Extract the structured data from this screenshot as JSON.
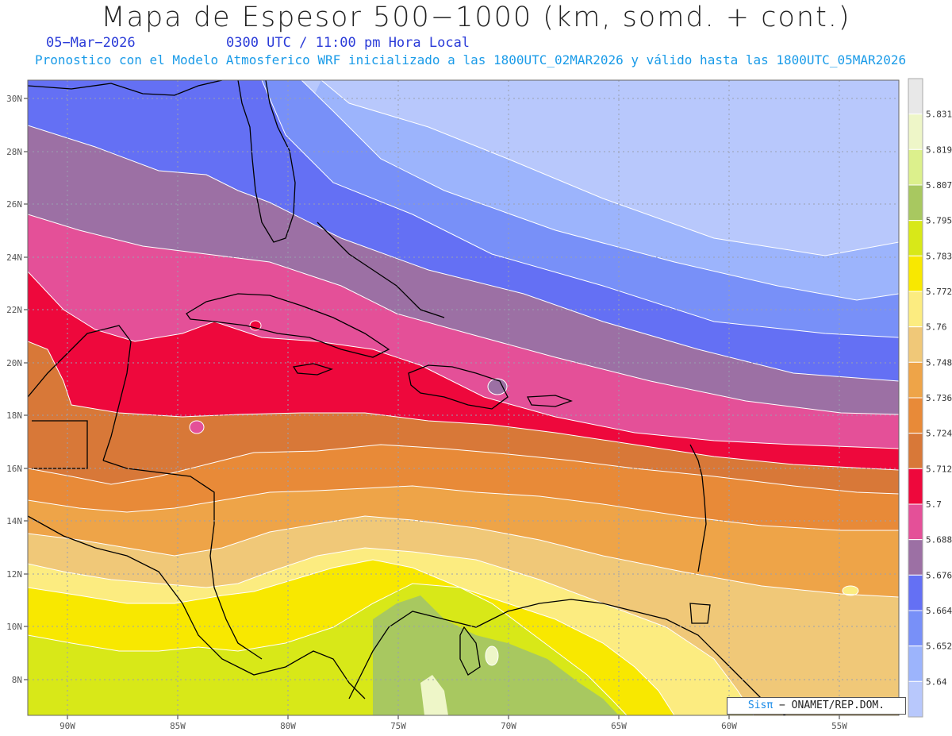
{
  "header": {
    "title": "Mapa de Espesor 500−1000 (km, somd. + cont.)",
    "date": "05−Mar−2026",
    "time": "0300 UTC / 11:00 pm Hora Local",
    "subtitle": "Pronostico con el Modelo Atmosferico WRF inicializado a las 1800UTC_02MAR2026 y válido hasta las  1800UTC_05MAR2026"
  },
  "map": {
    "lat_labels": [
      "30N",
      "28N",
      "26N",
      "24N",
      "22N",
      "20N",
      "18N",
      "16N",
      "14N",
      "12N",
      "10N",
      "8N"
    ],
    "lon_labels": [
      "90W",
      "85W",
      "80W",
      "75W",
      "70W",
      "65W",
      "60W",
      "55W"
    ],
    "lat_range": [
      6.8,
      30.6
    ],
    "lon_range": [
      -92,
      -52.7
    ]
  },
  "colorbar": {
    "levels": [
      "5.831",
      "5.819",
      "5.807",
      "5.795",
      "5.783",
      "5.772",
      "5.76",
      "5.748",
      "5.736",
      "5.724",
      "5.712",
      "5.7",
      "5.688",
      "5.676",
      "5.664",
      "5.652",
      "5.64"
    ],
    "colors": [
      "#e8e8e8",
      "#eef6c8",
      "#dcf08c",
      "#a8c860",
      "#d8e818",
      "#f8e800",
      "#fcec80",
      "#f0c878",
      "#eea448",
      "#e88a38",
      "#d87838",
      "#ee083c",
      "#e45098",
      "#9c70a4",
      "#6470f4",
      "#7890f8",
      "#9cb4fc",
      "#b8c8fc"
    ]
  },
  "credit": {
    "sis": "Sisπ",
    "rest": " − ONAMET/REP.DOM."
  }
}
